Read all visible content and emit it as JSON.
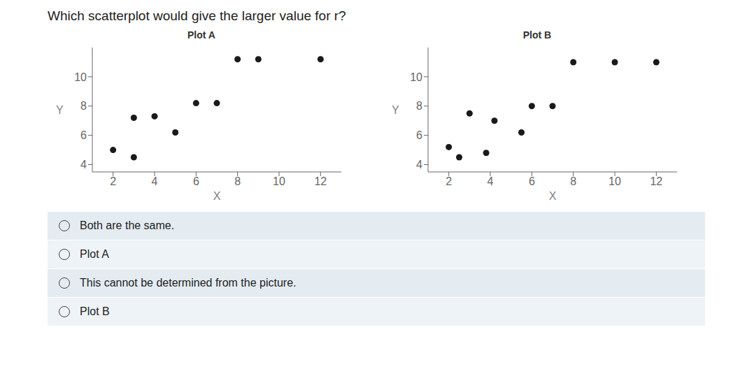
{
  "title": "Which scatterplot would give the larger value for r?",
  "annotations": [
    "Both are the same.",
    "Plot A",
    "This cannot be determined from the picture.",
    "Plot B"
  ],
  "chart_data": [
    {
      "type": "scatter",
      "title": "Plot A",
      "xlabel": "X",
      "ylabel": "Y",
      "x": [
        2,
        3,
        3,
        4,
        5,
        6,
        7,
        8,
        9,
        12
      ],
      "values": [
        5,
        7.2,
        4.5,
        7.3,
        6.2,
        8.2,
        8.2,
        11.2,
        11.2,
        11.2
      ],
      "color": "#1a1a1a",
      "xlim": [
        1,
        13
      ],
      "ylim": [
        3.5,
        12
      ],
      "xticks": [
        2,
        4,
        6,
        8,
        10,
        12
      ],
      "yticks": [
        4,
        6,
        8,
        10
      ],
      "grid": false
    },
    {
      "type": "scatter",
      "title": "Plot B",
      "xlabel": "X",
      "ylabel": "Y",
      "x": [
        2,
        2.5,
        3,
        3.8,
        4.2,
        5.5,
        6,
        7,
        8,
        10,
        12
      ],
      "values": [
        5.2,
        4.5,
        7.5,
        4.8,
        7,
        6.2,
        8,
        8,
        11,
        11,
        11
      ],
      "color": "#1a1a1a",
      "xlim": [
        1,
        13
      ],
      "ylim": [
        3.5,
        12
      ],
      "xticks": [
        2,
        4,
        6,
        8,
        10,
        12
      ],
      "yticks": [
        4,
        6,
        8,
        10
      ],
      "grid": false
    }
  ]
}
